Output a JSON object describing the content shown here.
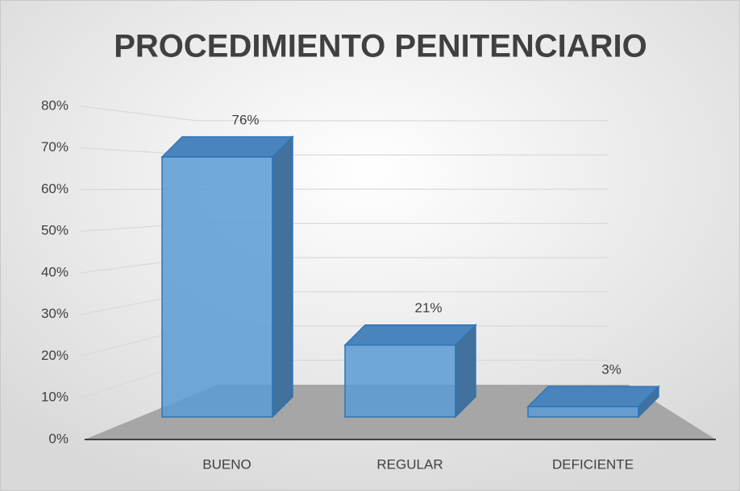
{
  "chart_data": {
    "type": "bar3d",
    "title": "PROCEDIMIENTO PENITENCIARIO",
    "categories": [
      "BUENO",
      "REGULAR",
      "DEFICIENTE"
    ],
    "values": [
      76,
      21,
      3
    ],
    "value_labels": [
      "76%",
      "21%",
      "3%"
    ],
    "color": "#5b9bd5",
    "ylim": [
      0,
      80
    ],
    "yticks": [
      {
        "value": 0,
        "label": "0%"
      },
      {
        "value": 10,
        "label": "10%"
      },
      {
        "value": 20,
        "label": "20%"
      },
      {
        "value": 30,
        "label": "30%"
      },
      {
        "value": 40,
        "label": "40%"
      },
      {
        "value": 50,
        "label": "50%"
      },
      {
        "value": 60,
        "label": "60%"
      },
      {
        "value": 70,
        "label": "70%"
      },
      {
        "value": 80,
        "label": "80%"
      }
    ],
    "grid": true
  }
}
